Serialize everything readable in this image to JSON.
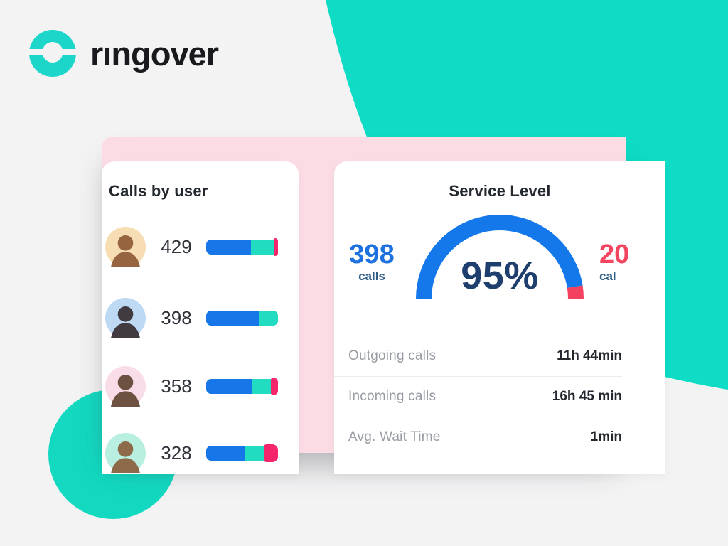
{
  "logo": {
    "text": "rıngover"
  },
  "colors": {
    "brand_teal": "#0edcc5",
    "dashboard_pink": "#fcdce4",
    "bar_blue": "#1777e8",
    "bar_teal": "#22dcc2",
    "bar_pink": "#f5256b",
    "gauge_blue": "#1478ea",
    "gauge_red": "#f4415f",
    "navy": "#1e3f6d"
  },
  "dashboard": {
    "calls_by_user": {
      "title": "Calls by user",
      "rows": [
        {
          "user": "user-1",
          "value": "429",
          "bar": {
            "blue": 62,
            "teal": 32,
            "pink": 6
          }
        },
        {
          "user": "user-2",
          "value": "398",
          "bar": {
            "blue": 73,
            "teal": 27,
            "pink": 0
          }
        },
        {
          "user": "user-3",
          "value": "358",
          "bar": {
            "blue": 63,
            "teal": 27,
            "pink": 10
          }
        },
        {
          "user": "user-4",
          "value": "328",
          "bar": {
            "blue": 53,
            "teal": 27,
            "pink": 20
          }
        }
      ]
    },
    "service_level": {
      "title": "Service Level",
      "gauge_value": 95,
      "gauge_label": "95%",
      "left_stat": {
        "value": "398",
        "label": "calls"
      },
      "right_stat": {
        "value": "20",
        "label": "cal"
      },
      "stats": [
        {
          "label": "Outgoing calls",
          "value": "11h 44min"
        },
        {
          "label": "Incoming calls",
          "value": "16h 45 min"
        },
        {
          "label": "Avg. Wait Time",
          "value": "1min"
        }
      ]
    }
  }
}
